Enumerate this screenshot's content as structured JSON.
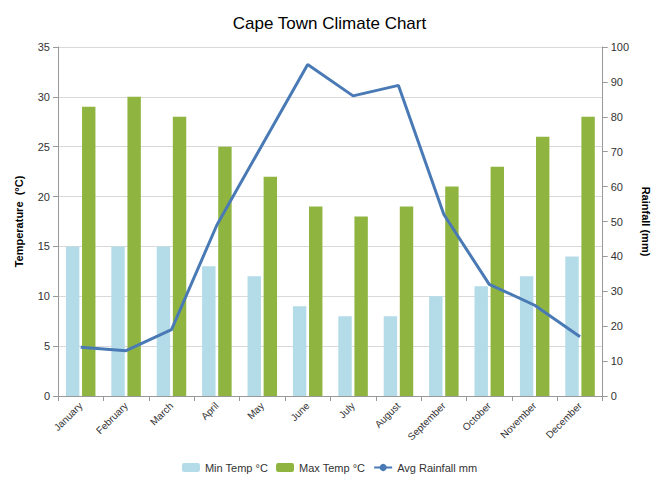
{
  "chart_data": {
    "type": "bar",
    "title": "Cape Town Climate Chart",
    "ylabel": "Temperature  (°C)",
    "y2label": "Rainfall (mm)",
    "categories": [
      "January",
      "February",
      "March",
      "April",
      "May",
      "June",
      "July",
      "August",
      "September",
      "October",
      "November",
      "December"
    ],
    "series": [
      {
        "name": "Min Temp °C",
        "type": "bar",
        "color": "#b3dbe8",
        "values": [
          15,
          15,
          15,
          13,
          12,
          9,
          8,
          8,
          10,
          11,
          12,
          14
        ]
      },
      {
        "name": "Max Temp °C",
        "type": "bar",
        "color": "#8fb540",
        "values": [
          29,
          30,
          28,
          25,
          22,
          19,
          18,
          19,
          21,
          23,
          26,
          28
        ]
      },
      {
        "name": "Avg Rainfall mm",
        "type": "line",
        "axis": "y2",
        "color": "#4a7ab5",
        "marker": "none",
        "values": [
          14,
          13,
          19,
          49,
          72,
          95,
          86,
          89,
          52,
          32,
          26,
          17
        ]
      }
    ],
    "ylim": [
      0,
      35
    ],
    "yticks": [
      0,
      5,
      10,
      15,
      20,
      25,
      30,
      35
    ],
    "y2lim": [
      0,
      100
    ],
    "y2ticks": [
      0,
      10,
      20,
      30,
      40,
      50,
      60,
      70,
      80,
      90,
      100
    ],
    "grid": true,
    "legend": "bottom"
  }
}
